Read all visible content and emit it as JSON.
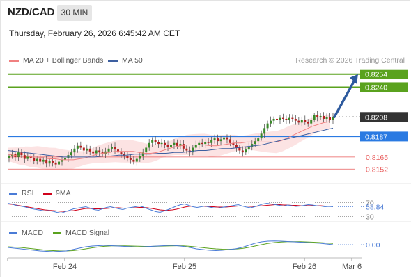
{
  "header": {
    "symbol": "NZD/CAD",
    "timeframe": "30 MIN",
    "datetime": "Thursday, February 26, 2026 6:45:42 AM CET"
  },
  "legend": {
    "ma_label": "MA 20 + Bollinger Bands",
    "ma_color": "#f08080",
    "ma50_label": "MA 50",
    "ma50_color": "#3d5fa0",
    "credit": "Research © 2026 Trading Central"
  },
  "chart_data": [
    {
      "type": "candlestick",
      "title": "NZD/CAD",
      "ylim": [
        0.8138,
        0.8262
      ],
      "x_tick_labels": [
        "Feb 24",
        "Feb 25",
        "Feb 26",
        "Mar 6"
      ],
      "levels": [
        {
          "value": "0.8254",
          "kind": "target",
          "color": "#5aa21e"
        },
        {
          "value": "0.8240",
          "kind": "target",
          "color": "#5aa21e"
        },
        {
          "value": "0.8208",
          "kind": "last_price",
          "color": "#333333"
        },
        {
          "value": "0.8187",
          "kind": "pivot",
          "color": "#2a7ae2"
        },
        {
          "value": "0.8165",
          "kind": "support",
          "color": "#e85a5a"
        },
        {
          "value": "0.8152",
          "kind": "support",
          "color": "#e85a5a"
        }
      ],
      "close_series": [
        0.8166,
        0.8168,
        0.8165,
        0.817,
        0.8167,
        0.8163,
        0.8166,
        0.8164,
        0.8161,
        0.8163,
        0.816,
        0.8162,
        0.8158,
        0.8161,
        0.8159,
        0.8157,
        0.816,
        0.8162,
        0.8164,
        0.8167,
        0.817,
        0.8174,
        0.8177,
        0.8175,
        0.8172,
        0.8174,
        0.8171,
        0.8169,
        0.8172,
        0.817,
        0.8168,
        0.8171,
        0.8174,
        0.8176,
        0.8173,
        0.817,
        0.8168,
        0.8166,
        0.8164,
        0.8162,
        0.816,
        0.8163,
        0.8166,
        0.817,
        0.8175,
        0.818,
        0.8183,
        0.8181,
        0.8179,
        0.818,
        0.8178,
        0.8176,
        0.8178,
        0.818,
        0.8177,
        0.8179,
        0.8174,
        0.8172,
        0.817,
        0.8175,
        0.8178,
        0.818,
        0.8179,
        0.8181,
        0.818,
        0.8183,
        0.8185,
        0.8182,
        0.8184,
        0.8186,
        0.8184,
        0.818,
        0.8178,
        0.8175,
        0.8172,
        0.817,
        0.8173,
        0.8176,
        0.8179,
        0.8182,
        0.8185,
        0.819,
        0.8196,
        0.8201,
        0.8204,
        0.8206,
        0.8205,
        0.8207,
        0.8206,
        0.8205,
        0.8207,
        0.8206,
        0.8204,
        0.8202,
        0.8205,
        0.8203,
        0.8201,
        0.8205,
        0.821,
        0.8208,
        0.8209,
        0.8206,
        0.8208,
        0.8205,
        0.8208
      ],
      "ma20_series": [
        0.8168,
        0.8167,
        0.8166,
        0.8166,
        0.8165,
        0.8165,
        0.8164,
        0.8163,
        0.8163,
        0.8162,
        0.8162,
        0.8162,
        0.8163,
        0.8164,
        0.8166,
        0.8168,
        0.8169,
        0.817,
        0.8171,
        0.8171,
        0.8171,
        0.8171,
        0.817,
        0.8169,
        0.8169,
        0.817,
        0.8172,
        0.8174,
        0.8176,
        0.8177,
        0.8178,
        0.8178,
        0.8178,
        0.8178,
        0.8177,
        0.8177,
        0.8178,
        0.8179,
        0.818,
        0.818,
        0.8181,
        0.8181,
        0.8181,
        0.8181,
        0.8181,
        0.8181,
        0.8183,
        0.8186,
        0.8189,
        0.8192,
        0.8195,
        0.8198,
        0.82,
        0.8202,
        0.8203
      ],
      "ma50_series": [
        0.8172,
        0.8171,
        0.817,
        0.8169,
        0.8168,
        0.8167,
        0.8166,
        0.8165,
        0.8165,
        0.8165,
        0.8165,
        0.8165,
        0.8166,
        0.8166,
        0.8167,
        0.8167,
        0.8168,
        0.8168,
        0.8168,
        0.8169,
        0.8169,
        0.817,
        0.817,
        0.8171,
        0.8172,
        0.8172,
        0.8173,
        0.8174,
        0.8174,
        0.8175,
        0.8176,
        0.8177,
        0.8178,
        0.818,
        0.8182,
        0.8184,
        0.8186,
        0.8188,
        0.819,
        0.8192,
        0.8194,
        0.8196
      ],
      "projection": {
        "from": 0.8208,
        "to": 0.8254,
        "color": "#2d5a9e"
      }
    },
    {
      "type": "line",
      "title": "RSI",
      "series": [
        {
          "name": "RSI",
          "color": "#4a7bd6",
          "current_label": "58.84"
        },
        {
          "name": "9MA",
          "color": "#d0021b"
        }
      ],
      "levels": [
        "70",
        "30"
      ],
      "rsi_values": [
        68,
        66,
        62,
        60,
        58,
        55,
        52,
        50,
        48,
        46,
        47,
        45,
        42,
        40,
        44,
        48,
        52,
        54,
        56,
        58,
        54,
        50,
        48,
        52,
        56,
        58,
        55,
        52,
        50,
        54,
        56,
        58,
        60,
        57,
        52,
        48,
        44,
        42,
        46,
        50,
        55,
        60,
        64,
        66,
        62,
        58,
        56,
        58,
        60,
        57,
        55,
        54,
        56,
        58,
        60,
        62,
        64,
        60,
        57,
        55,
        58,
        62,
        66,
        68,
        66,
        64,
        62,
        60,
        63,
        61,
        59,
        60,
        62,
        64,
        63,
        61,
        60,
        58,
        59,
        58
      ],
      "ma_values": [
        66,
        65,
        63,
        61,
        59,
        57,
        55,
        53,
        51,
        49,
        48,
        47,
        46,
        45,
        45,
        46,
        47,
        49,
        51,
        53,
        53,
        52,
        52,
        52,
        53,
        54,
        55,
        55,
        54,
        54,
        54,
        55,
        56,
        56,
        55,
        53,
        51,
        49,
        48,
        48,
        49,
        51,
        54,
        57,
        59,
        60,
        60,
        60,
        59,
        58,
        58,
        57,
        57,
        57,
        58,
        59,
        60,
        60,
        60,
        59,
        59,
        60,
        61,
        62,
        63,
        64,
        64,
        63,
        63,
        62,
        62,
        61,
        61,
        61,
        61,
        61,
        61,
        60,
        60,
        59
      ]
    },
    {
      "type": "line",
      "title": "MACD",
      "series": [
        {
          "name": "MACD",
          "color": "#4a7bd6",
          "current_label": "0.00"
        },
        {
          "name": "MACD Signal",
          "color": "#5aa21e"
        }
      ],
      "macd_values": [
        0.2,
        0.1,
        0,
        -0.1,
        -0.2,
        -0.3,
        -0.35,
        -0.4,
        -0.35,
        -0.3,
        -0.1,
        0.1,
        0.3,
        0.4,
        0.45,
        0.5,
        0.45,
        0.4,
        0.35,
        0.3,
        0.25,
        0.3,
        0.35,
        0.4,
        0.45,
        0.5,
        0.45,
        0.35,
        0.2,
        0,
        -0.1,
        -0.2,
        -0.25,
        -0.2,
        -0.1,
        0,
        0.2,
        0.5,
        0.8,
        1.0,
        1.1,
        1.12,
        1.1,
        1.05,
        1.0,
        0.95,
        0.9,
        0.85,
        0.8,
        0.7,
        0.6
      ],
      "signal_values": [
        0.3,
        0.25,
        0.2,
        0.1,
        0,
        -0.1,
        -0.2,
        -0.25,
        -0.3,
        -0.3,
        -0.25,
        -0.15,
        0,
        0.15,
        0.28,
        0.38,
        0.42,
        0.43,
        0.42,
        0.4,
        0.37,
        0.35,
        0.35,
        0.37,
        0.4,
        0.43,
        0.44,
        0.42,
        0.36,
        0.28,
        0.18,
        0.08,
        0,
        -0.05,
        -0.06,
        -0.03,
        0.05,
        0.2,
        0.4,
        0.6,
        0.78,
        0.9,
        0.98,
        1.02,
        1.03,
        1.02,
        0.99,
        0.95,
        0.9,
        0.84,
        0.77
      ]
    }
  ]
}
